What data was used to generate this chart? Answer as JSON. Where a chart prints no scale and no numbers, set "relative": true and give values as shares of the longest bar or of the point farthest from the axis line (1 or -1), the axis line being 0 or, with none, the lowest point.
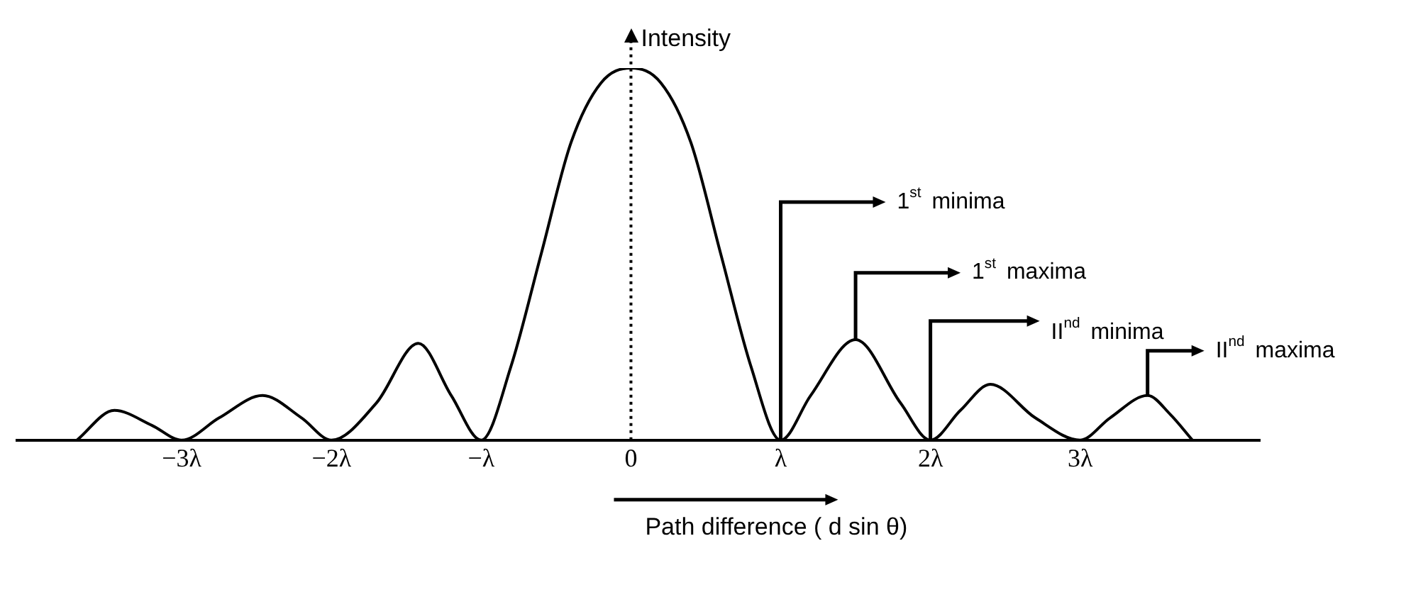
{
  "chart_data": {
    "type": "line",
    "relative": true,
    "ylabel": "Intensity",
    "xlabel": "Path difference ( d sin θ)",
    "xlim": [
      -4.1,
      4.2
    ],
    "xticks": [
      {
        "value": -3,
        "label": "−3λ"
      },
      {
        "value": -2,
        "label": "−2λ"
      },
      {
        "value": -1,
        "label": "−λ"
      },
      0,
      {
        "value": 1,
        "label": "λ"
      },
      {
        "value": 2,
        "label": "2λ"
      },
      {
        "value": 3,
        "label": "3λ"
      }
    ],
    "x": [
      -3.7,
      -3.45,
      -3.2,
      -3,
      -2.75,
      -2.46,
      -2.2,
      -2,
      -1.7,
      -1.42,
      -1.2,
      -1,
      -0.8,
      -0.6,
      -0.4,
      -0.2,
      0,
      0.2,
      0.4,
      0.6,
      0.8,
      1,
      1.2,
      1.5,
      1.8,
      2,
      2.2,
      2.4,
      2.7,
      3,
      3.2,
      3.45,
      3.6,
      3.75
    ],
    "series": [
      {
        "color": "#000000",
        "values": [
          0,
          0.08,
          0.04,
          0,
          0.06,
          0.12,
          0.06,
          0,
          0.1,
          0.26,
          0.12,
          0,
          0.2,
          0.5,
          0.8,
          0.96,
          1,
          0.96,
          0.8,
          0.5,
          0.2,
          0,
          0.12,
          0.27,
          0.1,
          0,
          0.08,
          0.15,
          0.06,
          0,
          0.06,
          0.12,
          0.07,
          0
        ]
      }
    ],
    "annotations": [
      {
        "text": "1$^{st}$ minima",
        "x": 1,
        "y": 0
      },
      {
        "text": "1$^{st}$ maxima",
        "x": 1.5,
        "y": 0.27
      },
      {
        "text": "II$^{nd}$ minima",
        "x": 2,
        "y": 0
      },
      {
        "text": "II$^{nd}$ maxima",
        "x": 3.45,
        "y": 0.12
      }
    ],
    "ref_lines": [
      {
        "axis": "x",
        "value": 0,
        "line_style": "dotted"
      }
    ],
    "grid": false,
    "legend": false,
    "marker": "none",
    "line_style": "solid"
  }
}
